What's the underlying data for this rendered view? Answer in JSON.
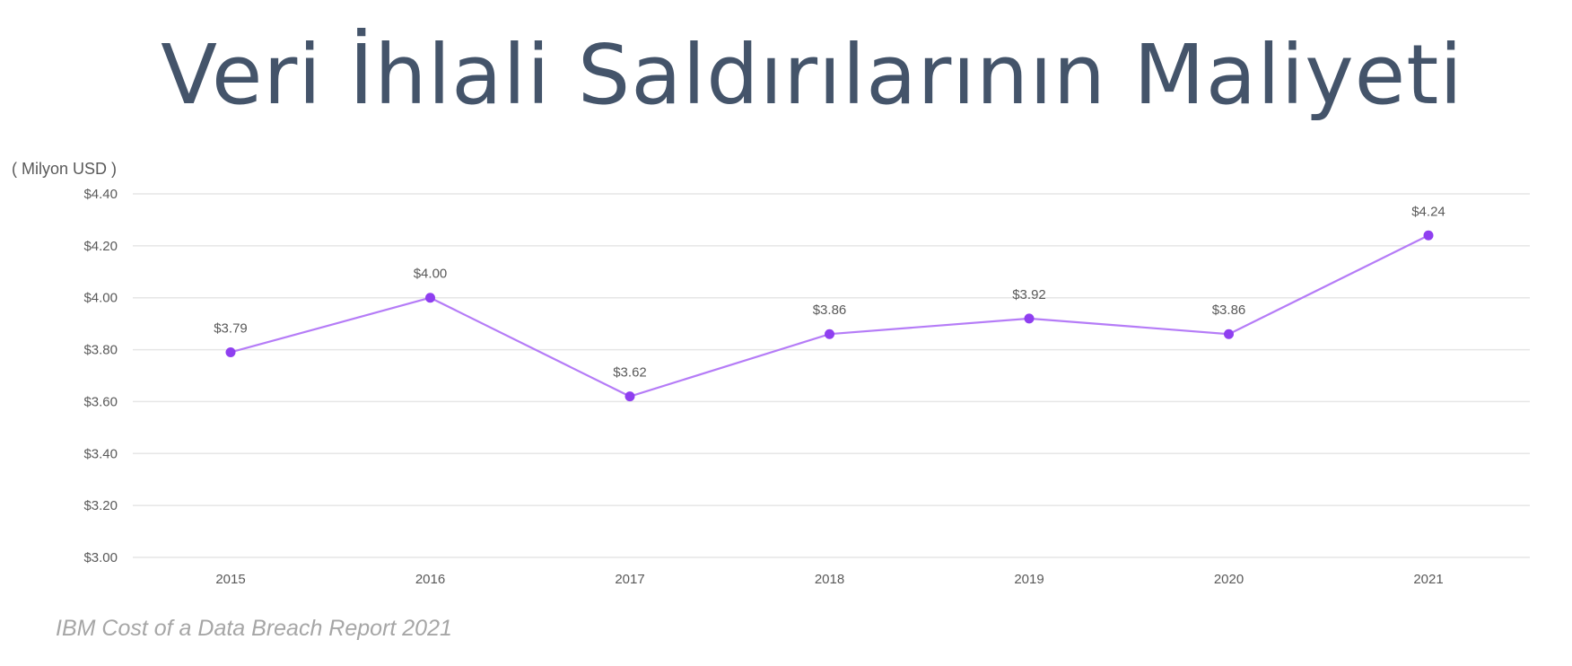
{
  "page": {
    "title": "Veri İhlali Saldırılarının Maliyeti",
    "unit_label": "( Milyon USD )",
    "source": "IBM Cost of a Data Breach Report 2021"
  },
  "chart_data": {
    "type": "line",
    "title": "Veri İhlali Saldırılarının Maliyeti",
    "ylabel": "( Milyon USD )",
    "xlabel": "",
    "categories": [
      "2015",
      "2016",
      "2017",
      "2018",
      "2019",
      "2020",
      "2021"
    ],
    "values": [
      3.79,
      4.0,
      3.62,
      3.86,
      3.92,
      3.86,
      4.24
    ],
    "data_labels": [
      "$3.79",
      "$4.00",
      "$3.62",
      "$3.86",
      "$3.92",
      "$3.86",
      "$4.24"
    ],
    "ylim": [
      3.0,
      4.4
    ],
    "yticks": [
      3.0,
      3.2,
      3.4,
      3.6,
      3.8,
      4.0,
      4.2,
      4.4
    ],
    "ytick_labels": [
      "$3.00",
      "$3.20",
      "$3.40",
      "$3.60",
      "$3.80",
      "$4.00",
      "$4.20",
      "$4.40"
    ],
    "grid": true,
    "legend": "none",
    "colors": {
      "line": "#b57cf7",
      "marker": "#8f3ff0",
      "grid": "#e6e6e6",
      "title": "#44546a"
    }
  }
}
